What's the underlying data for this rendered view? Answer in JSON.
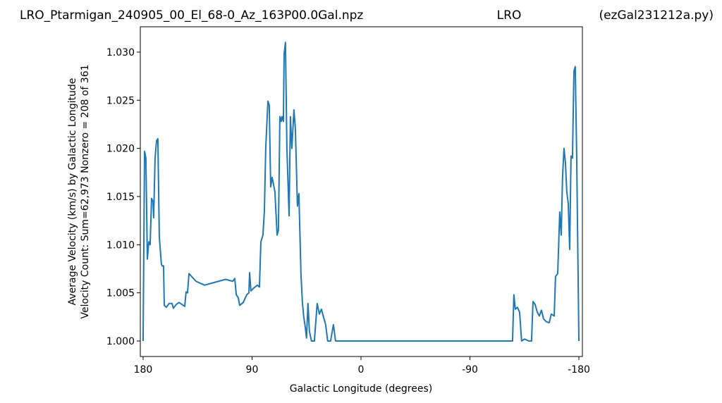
{
  "chart_data": {
    "type": "line",
    "title": "LRO_Ptarmigan_240905_00_El_68-0_Az_163P00.0Gal.npz",
    "subtitle": "LRO",
    "annotation": "(ezGal231212a.py)",
    "xlabel": "Galactic Longitude (degrees)",
    "ylabel": [
      "Average Velocity (km/s) by Galactic Longitude",
      "Velocity Count: Sum=62,973 Nonzero = 208 of 361"
    ],
    "color": "#1f77b4",
    "xlim": [
      182.3,
      -182.9
    ],
    "ylim": [
      0.99839,
      1.03263
    ],
    "xticks": [
      180,
      90,
      0,
      -90,
      -180
    ],
    "yticks": [
      {
        "value": 1.0,
        "label": "1.000"
      },
      {
        "value": 1.005,
        "label": "1.005"
      },
      {
        "value": 1.01,
        "label": "1.010"
      },
      {
        "value": 1.015,
        "label": "1.015"
      },
      {
        "value": 1.02,
        "label": "1.020"
      },
      {
        "value": 1.025,
        "label": "1.025"
      },
      {
        "value": 1.03,
        "label": "1.030"
      }
    ],
    "x": [
      180,
      178.8,
      177.7,
      176.5,
      175.3,
      174.2,
      173,
      171.8,
      171.3,
      170.1,
      168.9,
      167.8,
      166.6,
      164.9,
      164.3,
      163.1,
      162.5,
      160.8,
      158.5,
      156.1,
      155,
      152.6,
      150.3,
      148,
      145.6,
      144.5,
      143.3,
      142.1,
      136.3,
      129.3,
      123.5,
      117.7,
      111.9,
      106,
      104.3,
      103,
      101.4,
      100.2,
      97.3,
      94.4,
      92.6,
      92,
      90.9,
      88.6,
      85.6,
      83.9,
      82.7,
      81,
      79.8,
      78.7,
      76.9,
      75.8,
      74.6,
      73.4,
      71.1,
      69.3,
      68.2,
      67,
      65.9,
      65.3,
      64.1,
      63.5,
      62.4,
      61.2,
      59.4,
      58.3,
      57.1,
      55.4,
      54.2,
      52.5,
      51.3,
      49.6,
      48.4,
      47.3,
      46.1,
      45,
      43.8,
      42.6,
      40.9,
      38.5,
      36.2,
      34.4,
      32.7,
      31,
      29.2,
      27.5,
      25.1,
      22.8,
      21,
      -125.2,
      -126.3,
      -127.5,
      -129.2,
      -131,
      -132.7,
      -135.1,
      -138.6,
      -140.9,
      -142.1,
      -143.8,
      -145.6,
      -147.3,
      -149.1,
      -150.8,
      -153.1,
      -155.5,
      -157.2,
      -159.6,
      -160.7,
      -162.5,
      -164.2,
      -165.4,
      -166.5,
      -167.7,
      -168.9,
      -170,
      -171.2,
      -172.4,
      -173.5,
      -174.7,
      -175.9,
      -177,
      -178.2,
      -180
    ],
    "values": [
      1.0,
      1.0197,
      1.019,
      1.0085,
      1.0103,
      1.01,
      1.0148,
      1.0145,
      1.0128,
      1.019,
      1.0208,
      1.021,
      1.0108,
      1.008,
      1.0078,
      1.0078,
      1.0037,
      1.0035,
      1.0039,
      1.0039,
      1.0034,
      1.0038,
      1.004,
      1.0038,
      1.0036,
      1.0051,
      1.005,
      1.007,
      1.0062,
      1.0058,
      1.006,
      1.0062,
      1.0064,
      1.0062,
      1.0065,
      1.0048,
      1.0045,
      1.0037,
      1.004,
      1.0048,
      1.005,
      1.0071,
      1.0052,
      1.0055,
      1.0058,
      1.0056,
      1.0103,
      1.011,
      1.0135,
      1.02,
      1.0249,
      1.0245,
      1.016,
      1.017,
      1.0155,
      1.011,
      1.0115,
      1.0233,
      1.0228,
      1.0233,
      1.0228,
      1.0298,
      1.031,
      1.02,
      1.013,
      1.0233,
      1.02,
      1.024,
      1.022,
      1.014,
      1.0153,
      1.007,
      1.004,
      1.0025,
      1.0015,
      1.0003,
      1.0039,
      1.001,
      1.0,
      1.0,
      1.0039,
      1.0028,
      1.0033,
      1.0025,
      1.0017,
      1.0,
      1.0,
      1.0017,
      1.0,
      1.0,
      1.0048,
      1.0033,
      1.0035,
      1.003,
      1.0,
      1.0002,
      1.0,
      1.0,
      1.0041,
      1.0038,
      1.003,
      1.0026,
      1.0032,
      1.0023,
      1.002,
      1.0019,
      1.0028,
      1.0026,
      1.0067,
      1.007,
      1.0134,
      1.011,
      1.017,
      1.02,
      1.0185,
      1.0155,
      1.0143,
      1.0095,
      1.0192,
      1.019,
      1.028,
      1.0285,
      1.019,
      1.0
    ]
  }
}
